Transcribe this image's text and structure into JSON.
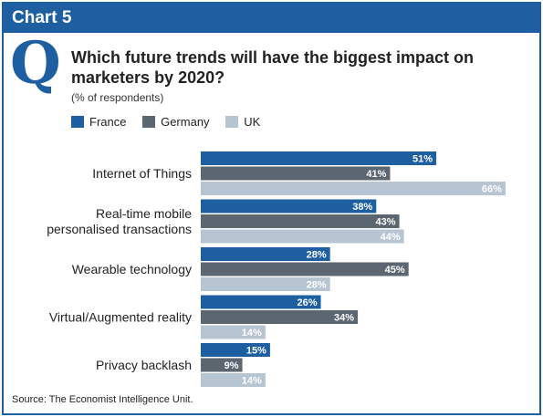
{
  "header": {
    "title": "Chart 5"
  },
  "q_mark": "Q",
  "question": "Which future trends will have the biggest impact on marketers by 2020?",
  "subtitle": "(% of respondents)",
  "source": "Source: The Economist Intelligence Unit.",
  "colors": {
    "France": "#1d5fa0",
    "Germany": "#5b6670",
    "UK": "#b7c4d2",
    "frame": "#1d5fa0"
  },
  "chart_data": {
    "type": "bar",
    "orientation": "horizontal",
    "title": "Which future trends will have the biggest impact on marketers by 2020?",
    "subtitle": "(% of respondents)",
    "xlabel": "",
    "ylabel": "",
    "xlim": [
      0,
      66
    ],
    "grid": false,
    "legend_position": "top-left",
    "categories": [
      [
        "Internet of Things"
      ],
      [
        "Real-time mobile",
        "personalised transactions"
      ],
      [
        "Wearable technology"
      ],
      [
        "Virtual/Augmented reality"
      ],
      [
        "Privacy backlash"
      ]
    ],
    "series": [
      {
        "name": "France",
        "values": [
          51,
          38,
          28,
          26,
          15
        ],
        "labels": [
          "51%",
          "38%",
          "28%",
          "26%",
          "15%"
        ]
      },
      {
        "name": "Germany",
        "values": [
          41,
          43,
          45,
          34,
          9
        ],
        "labels": [
          "41%",
          "43%",
          "45%",
          "34%",
          "9%"
        ]
      },
      {
        "name": "UK",
        "values": [
          66,
          44,
          28,
          14,
          14
        ],
        "labels": [
          "66%",
          "44%",
          "28%",
          "14%",
          "14%"
        ]
      }
    ]
  }
}
